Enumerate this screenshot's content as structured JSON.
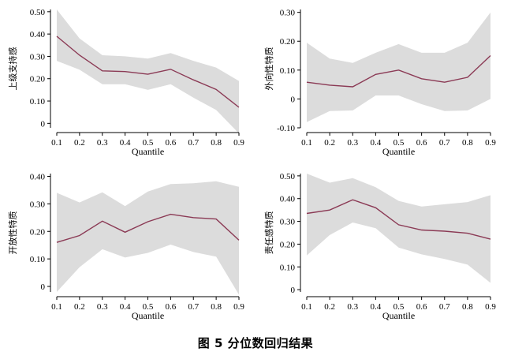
{
  "caption": "图 5  分位数回归结果",
  "colors": {
    "line": "#8b3a55",
    "band": "#dcdcdc",
    "axis": "#000000"
  },
  "chart_data": [
    {
      "type": "line",
      "ylabel": "上级支持感",
      "xlabel": "Quantile",
      "x": [
        0.1,
        0.2,
        0.3,
        0.4,
        0.5,
        0.6,
        0.7,
        0.8,
        0.9
      ],
      "xticks": [
        "0.1",
        "0.2",
        "0.3",
        "0.4",
        "0.5",
        "0.6",
        "0.7",
        "0.8",
        "0.9"
      ],
      "ylim": [
        -0.02,
        0.51
      ],
      "yticks": [
        0,
        0.1,
        0.2,
        0.3,
        0.4,
        0.5
      ],
      "ytick_labels": [
        "0",
        "0.10",
        "0.20",
        "0.30",
        "0.40",
        "0.50"
      ],
      "series": [
        {
          "values": [
            0.39,
            0.305,
            0.235,
            0.232,
            0.22,
            0.242,
            0.195,
            0.152,
            0.072
          ]
        }
      ],
      "band_upper": [
        0.51,
        0.38,
        0.305,
        0.3,
        0.29,
        0.315,
        0.28,
        0.25,
        0.19
      ],
      "band_lower": [
        0.28,
        0.24,
        0.175,
        0.175,
        0.15,
        0.175,
        0.115,
        0.06,
        -0.045
      ]
    },
    {
      "type": "line",
      "ylabel": "外向性特质",
      "xlabel": "Quantile",
      "x": [
        0.1,
        0.2,
        0.3,
        0.4,
        0.5,
        0.6,
        0.7,
        0.8,
        0.9
      ],
      "xticks": [
        "0.1",
        "0.2",
        "0.3",
        "0.4",
        "0.5",
        "0.6",
        "0.7",
        "0.8",
        "0.9"
      ],
      "ylim": [
        -0.1,
        0.31
      ],
      "yticks": [
        -0.1,
        0,
        0.1,
        0.2,
        0.3
      ],
      "ytick_labels": [
        "-0.10",
        "0",
        "0.10",
        "0.20",
        "0.30"
      ],
      "series": [
        {
          "values": [
            0.058,
            0.048,
            0.042,
            0.085,
            0.1,
            0.07,
            0.058,
            0.075,
            0.15
          ]
        }
      ],
      "band_upper": [
        0.195,
        0.14,
        0.125,
        0.16,
        0.19,
        0.16,
        0.16,
        0.195,
        0.3
      ],
      "band_lower": [
        -0.08,
        -0.042,
        -0.04,
        0.012,
        0.012,
        -0.018,
        -0.042,
        -0.04,
        0.0
      ]
    },
    {
      "type": "line",
      "ylabel": "开放性特质",
      "xlabel": "Quantile",
      "x": [
        0.1,
        0.2,
        0.3,
        0.4,
        0.5,
        0.6,
        0.7,
        0.8,
        0.9
      ],
      "xticks": [
        "0.1",
        "0.2",
        "0.3",
        "0.4",
        "0.5",
        "0.6",
        "0.7",
        "0.8",
        "0.9"
      ],
      "ylim": [
        -0.02,
        0.41
      ],
      "yticks": [
        0,
        0.1,
        0.2,
        0.3,
        0.4
      ],
      "ytick_labels": [
        "0",
        "0.10",
        "0.20",
        "0.30",
        "0.40"
      ],
      "series": [
        {
          "values": [
            0.16,
            0.185,
            0.237,
            0.197,
            0.235,
            0.262,
            0.25,
            0.245,
            0.168
          ]
        }
      ],
      "band_upper": [
        0.34,
        0.305,
        0.342,
        0.292,
        0.345,
        0.372,
        0.375,
        0.382,
        0.362
      ],
      "band_lower": [
        -0.02,
        0.07,
        0.135,
        0.105,
        0.122,
        0.152,
        0.125,
        0.108,
        -0.03
      ]
    },
    {
      "type": "line",
      "ylabel": "责任感特质",
      "xlabel": "Quantile",
      "x": [
        0.1,
        0.2,
        0.3,
        0.4,
        0.5,
        0.6,
        0.7,
        0.8,
        0.9
      ],
      "xticks": [
        "0.1",
        "0.2",
        "0.3",
        "0.4",
        "0.5",
        "0.6",
        "0.7",
        "0.8",
        "0.9"
      ],
      "ylim": [
        -0.01,
        0.51
      ],
      "yticks": [
        0,
        0.1,
        0.2,
        0.3,
        0.4,
        0.5
      ],
      "ytick_labels": [
        "0",
        "0.10",
        "0.20",
        "0.30",
        "0.40",
        "0.50"
      ],
      "series": [
        {
          "values": [
            0.335,
            0.35,
            0.395,
            0.36,
            0.285,
            0.262,
            0.257,
            0.248,
            0.222
          ]
        }
      ],
      "band_upper": [
        0.51,
        0.47,
        0.49,
        0.45,
        0.39,
        0.365,
        0.375,
        0.385,
        0.415
      ],
      "band_lower": [
        0.15,
        0.24,
        0.295,
        0.27,
        0.185,
        0.155,
        0.135,
        0.11,
        0.03
      ]
    }
  ]
}
